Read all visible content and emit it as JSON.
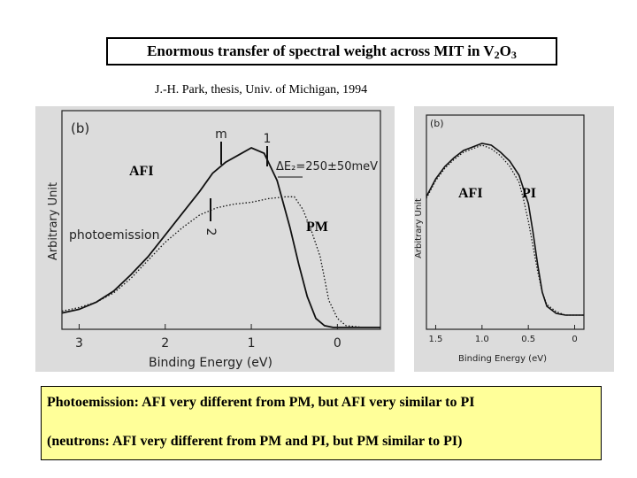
{
  "header": {
    "title_main": "Enormous transfer of spectral weight across MIT in V",
    "title_sub1": "2",
    "title_mid": "O",
    "title_sub2": "3",
    "citation": "J.-H. Park, thesis, Univ. of Michigan, 1994"
  },
  "colors": {
    "scan_bg": "#dcdcdc",
    "caption_bg": "#ffff99",
    "ink": "#000000"
  },
  "chart_data": [
    {
      "type": "line",
      "panel_label": "(b)",
      "xlabel": "Binding Energy (eV)",
      "ylabel": "Arbitrary Unit",
      "xlim": [
        3.2,
        -0.5
      ],
      "x_reversed": true,
      "x_ticks": [
        "3",
        "2",
        "1",
        "0"
      ],
      "annotations": {
        "m_label": "m",
        "one_label": "1",
        "two_label": "2",
        "delta_label": "ΔE₂=250±50meV",
        "afi_label": "AFI",
        "pm_label": "PM",
        "photoemission_label": "photoemission"
      },
      "series": [
        {
          "name": "AFI",
          "style": "solid",
          "x": [
            3.2,
            3.0,
            2.8,
            2.6,
            2.4,
            2.2,
            2.0,
            1.8,
            1.6,
            1.45,
            1.3,
            1.15,
            1.0,
            0.85,
            0.7,
            0.55,
            0.45,
            0.35,
            0.25,
            0.15,
            0.05,
            -0.1,
            -0.3,
            -0.5
          ],
          "y": [
            0.09,
            0.11,
            0.15,
            0.21,
            0.3,
            0.4,
            0.52,
            0.64,
            0.76,
            0.86,
            0.92,
            0.96,
            1.0,
            0.97,
            0.82,
            0.56,
            0.36,
            0.18,
            0.06,
            0.02,
            0.01,
            0.01,
            0.01,
            0.01
          ]
        },
        {
          "name": "PM",
          "style": "dotted",
          "x": [
            3.2,
            3.0,
            2.8,
            2.6,
            2.4,
            2.2,
            2.0,
            1.8,
            1.6,
            1.4,
            1.2,
            1.0,
            0.8,
            0.6,
            0.5,
            0.4,
            0.3,
            0.2,
            0.15,
            0.1,
            0.0,
            -0.1,
            -0.3,
            -0.5
          ],
          "y": [
            0.1,
            0.12,
            0.15,
            0.2,
            0.28,
            0.38,
            0.48,
            0.56,
            0.63,
            0.67,
            0.69,
            0.7,
            0.72,
            0.73,
            0.73,
            0.66,
            0.54,
            0.4,
            0.28,
            0.16,
            0.06,
            0.02,
            0.01,
            0.01
          ]
        }
      ]
    },
    {
      "type": "line",
      "panel_label": "(b)",
      "xlabel": "Binding Energy (eV)",
      "ylabel": "Arbitrary Unit",
      "xlim": [
        1.6,
        -0.1
      ],
      "x_reversed": true,
      "x_ticks": [
        "1.5",
        "1.0",
        "0.5",
        "0"
      ],
      "annotations": {
        "afi_label": "AFI",
        "pi_label": "PI"
      },
      "series": [
        {
          "name": "AFI",
          "style": "solid",
          "x": [
            1.6,
            1.5,
            1.4,
            1.3,
            1.2,
            1.1,
            1.0,
            0.9,
            0.8,
            0.7,
            0.6,
            0.5,
            0.45,
            0.4,
            0.35,
            0.3,
            0.2,
            0.1,
            0.0,
            -0.1
          ],
          "y": [
            0.7,
            0.8,
            0.87,
            0.92,
            0.96,
            0.98,
            1.0,
            0.99,
            0.95,
            0.9,
            0.82,
            0.66,
            0.5,
            0.32,
            0.16,
            0.08,
            0.04,
            0.03,
            0.03,
            0.03
          ]
        },
        {
          "name": "PI",
          "style": "dotted",
          "x": [
            1.6,
            1.5,
            1.4,
            1.3,
            1.2,
            1.1,
            1.0,
            0.9,
            0.8,
            0.7,
            0.6,
            0.55,
            0.5,
            0.45,
            0.4,
            0.35,
            0.3,
            0.2,
            0.1,
            0.0,
            -0.1
          ],
          "y": [
            0.69,
            0.79,
            0.86,
            0.91,
            0.95,
            0.97,
            0.99,
            0.97,
            0.93,
            0.87,
            0.78,
            0.68,
            0.56,
            0.42,
            0.28,
            0.16,
            0.09,
            0.05,
            0.03,
            0.03,
            0.03
          ]
        }
      ]
    }
  ],
  "caption": {
    "line1": "Photoemission:  AFI very different from PM,   but AFI very similar to PI",
    "line2": "(neutrons: AFI very different from PM and PI,   but PM similar to PI)"
  }
}
